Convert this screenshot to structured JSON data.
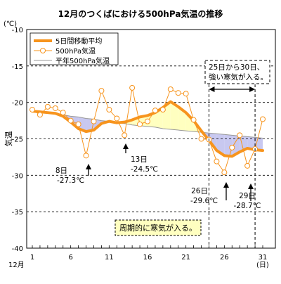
{
  "chart_data": {
    "type": "line",
    "title": "12月のつくばにおける500hPa気温の推移",
    "unit_label": "(℃)",
    "ylabel": "気温",
    "xlabel": "12月",
    "x_unit_label": "(日)",
    "ylim": [
      -40,
      -10
    ],
    "xlim": [
      1,
      31
    ],
    "y_ticks": [
      -10,
      -15,
      -20,
      -25,
      -30,
      -35,
      -40
    ],
    "x_ticks": [
      1,
      6,
      11,
      16,
      21,
      26,
      31
    ],
    "grid": "horizontal-dashed",
    "legend_position": "top-left",
    "days": [
      1,
      2,
      3,
      4,
      5,
      6,
      7,
      8,
      9,
      10,
      11,
      12,
      13,
      14,
      15,
      16,
      17,
      18,
      19,
      20,
      21,
      22,
      23,
      24,
      25,
      26,
      27,
      28,
      29,
      30,
      31
    ],
    "series": [
      {
        "name": "5日間移動平均",
        "color": "#f7941d",
        "style": "thick-line",
        "values": [
          -21.2,
          -21.3,
          -21.4,
          -21.5,
          -21.9,
          -22.7,
          -23.6,
          -24.0,
          -23.8,
          -22.9,
          -22.6,
          -22.8,
          -22.7,
          -22.4,
          -22.0,
          -21.8,
          -21.4,
          -20.7,
          -19.9,
          -20.6,
          -21.4,
          -22.5,
          -23.9,
          -25.2,
          -26.6,
          -27.3,
          -27.4,
          -26.8,
          -26.3,
          -26.5,
          -26.6
        ]
      },
      {
        "name": "500hPa気温",
        "color": "#f7941d",
        "style": "line-with-open-circles",
        "values": [
          -21.0,
          -21.7,
          -20.6,
          -20.8,
          -21.4,
          -22.5,
          -23.0,
          -27.3,
          -22.6,
          -18.4,
          -21.0,
          -22.2,
          -24.5,
          -18.0,
          -23.0,
          -22.6,
          -21.1,
          -21.0,
          -18.2,
          -18.7,
          -18.8,
          -22.4,
          -25.0,
          -25.1,
          -28.1,
          -29.6,
          -26.2,
          -24.5,
          -28.7,
          -26.4,
          -22.3
        ]
      },
      {
        "name": "平年500hPa気温",
        "color": "#999999",
        "style": "thin-line",
        "values": [
          -21.1,
          -21.3,
          -21.4,
          -21.6,
          -21.7,
          -21.9,
          -22.0,
          -22.2,
          -22.3,
          -22.5,
          -22.6,
          -22.8,
          -22.9,
          -23.1,
          -23.2,
          -23.3,
          -23.4,
          -23.6,
          -23.7,
          -23.8,
          -23.9,
          -24.0,
          -24.1,
          -24.2,
          -24.3,
          -24.4,
          -24.5,
          -24.6,
          -24.7,
          -24.8,
          -24.9
        ]
      }
    ],
    "fill_colors": {
      "above_normal": "#ffffc0",
      "below_normal": "#c8c8f0"
    },
    "annotations": {
      "period_label": "25日から30日、強い寒気が入る。",
      "period_label_lines": [
        "25日から30日、",
        "強い寒気が入る。"
      ],
      "period_range": [
        24,
        30
      ],
      "note": "周期的に寒気が入る。",
      "note_bg": "#ffffc0",
      "callouts": [
        {
          "day": 8,
          "value": -27.3,
          "label_day": "8日",
          "label_value": "-27.3℃",
          "arrow": "up"
        },
        {
          "day": 13,
          "value": -24.5,
          "label_day": "13日",
          "label_value": "-24.5℃",
          "arrow": "up"
        },
        {
          "day": 26,
          "value": -29.6,
          "label_day": "26日",
          "label_value": "-29.6℃",
          "arrow": "up"
        },
        {
          "day": 29,
          "value": -28.7,
          "label_day": "29日",
          "label_value": "-28.7℃",
          "arrow": "up"
        }
      ]
    }
  }
}
